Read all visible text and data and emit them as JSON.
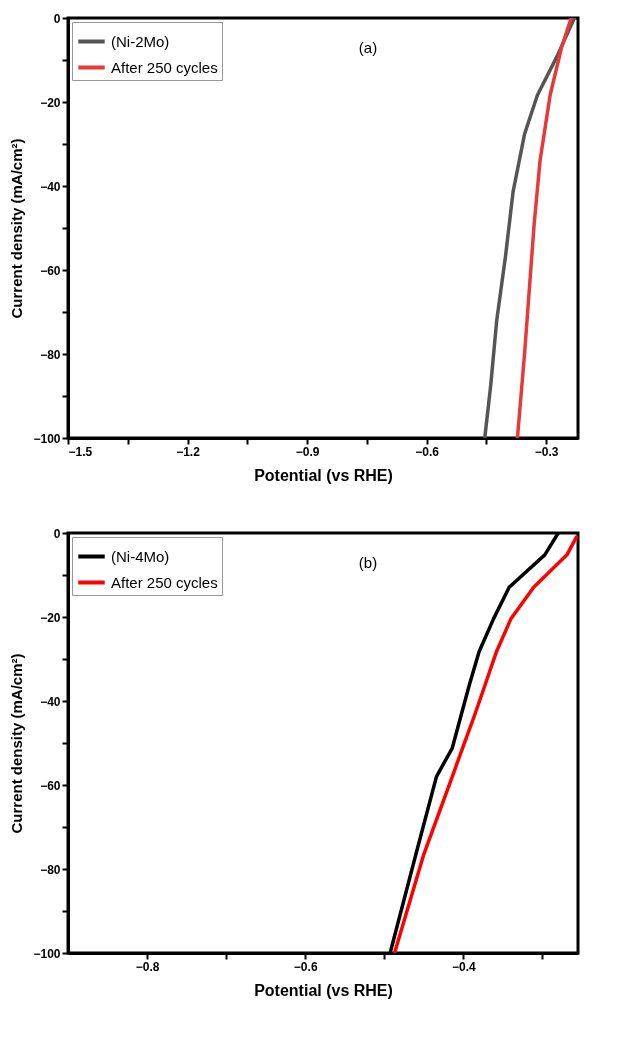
{
  "chart_data": [
    {
      "type": "line",
      "xlabel": "Potential (vs RHE)",
      "ylabel": "Current density (mA/cm²)",
      "annotations": [
        "(a)"
      ],
      "legend": "top left",
      "grid": false,
      "marker": "none",
      "line_style": "solid",
      "xlim": [
        -1.5,
        -0.22
      ],
      "xticks": [
        -1.5,
        {
          "value": -1.35,
          "label": null
        },
        -1.2,
        {
          "value": -1.05,
          "label": null
        },
        -0.9,
        {
          "value": -0.75,
          "label": null
        },
        -0.6,
        {
          "value": -0.45,
          "label": null
        },
        -0.3
      ],
      "ylim": [
        -100,
        0
      ],
      "yticks": [
        -100,
        {
          "value": -90,
          "label": null
        },
        -80,
        {
          "value": -70,
          "label": null
        },
        -60,
        {
          "value": -50,
          "label": null
        },
        -40,
        {
          "value": -30,
          "label": null
        },
        -20,
        {
          "value": -10,
          "label": null
        },
        0
      ],
      "series": [
        {
          "name": "(Ni-2Mo)",
          "color": "#555555",
          "x": [
            -0.229,
            -0.273,
            -0.322,
            -0.354,
            -0.383,
            -0.402,
            -0.424,
            -0.439,
            -0.454
          ],
          "values": [
            0,
            -9.2,
            -18.4,
            -27.6,
            -41.4,
            -56.8,
            -72,
            -87.4,
            -100
          ]
        },
        {
          "name": "After 250 cycles",
          "color": "#e8393a",
          "x": [
            -0.237,
            -0.261,
            -0.29,
            -0.315,
            -0.33,
            -0.342,
            -0.354,
            -0.372
          ],
          "values": [
            0,
            -6.9,
            -18.4,
            -33.8,
            -49,
            -64.4,
            -79.8,
            -100
          ]
        }
      ]
    },
    {
      "type": "line",
      "xlabel": "Potential (vs RHE)",
      "ylabel": "Current density (mA/cm²)",
      "annotations": [
        "(b)"
      ],
      "legend": "top left",
      "grid": false,
      "marker": "none",
      "line_style": "solid",
      "xlim": [
        -0.9,
        -0.255
      ],
      "xticks": [
        -0.8,
        {
          "value": -0.7,
          "label": null
        },
        -0.6,
        {
          "value": -0.5,
          "label": null
        },
        -0.4,
        {
          "value": -0.3,
          "label": null
        }
      ],
      "ylim": [
        -100,
        0
      ],
      "yticks": [
        -100,
        {
          "value": -90,
          "label": null
        },
        -80,
        {
          "value": -70,
          "label": null
        },
        -60,
        {
          "value": -50,
          "label": null
        },
        -40,
        {
          "value": -30,
          "label": null
        },
        -20,
        {
          "value": -10,
          "label": null
        },
        0
      ],
      "series": [
        {
          "name": "(Ni-4Mo)",
          "color": "#000000",
          "x": [
            -0.28,
            -0.297,
            -0.342,
            -0.362,
            -0.38,
            -0.392,
            -0.403,
            -0.414,
            -0.434,
            -0.46,
            -0.4926
          ],
          "values": [
            0,
            -5.2,
            -12.9,
            -20.5,
            -28.2,
            -35.9,
            -43.5,
            -51.2,
            -58,
            -76.5,
            -100
          ]
        },
        {
          "name": "After 250 cycles",
          "color": "#ff0000",
          "x": [
            -0.257,
            -0.269,
            -0.311,
            -0.34,
            -0.358,
            -0.372,
            -0.386,
            -0.401,
            -0.414,
            -0.45,
            -0.487
          ],
          "values": [
            -1,
            -5.2,
            -12.9,
            -20.5,
            -28.2,
            -35.9,
            -43.5,
            -51.2,
            -58,
            -76.5,
            -100
          ]
        }
      ]
    }
  ]
}
